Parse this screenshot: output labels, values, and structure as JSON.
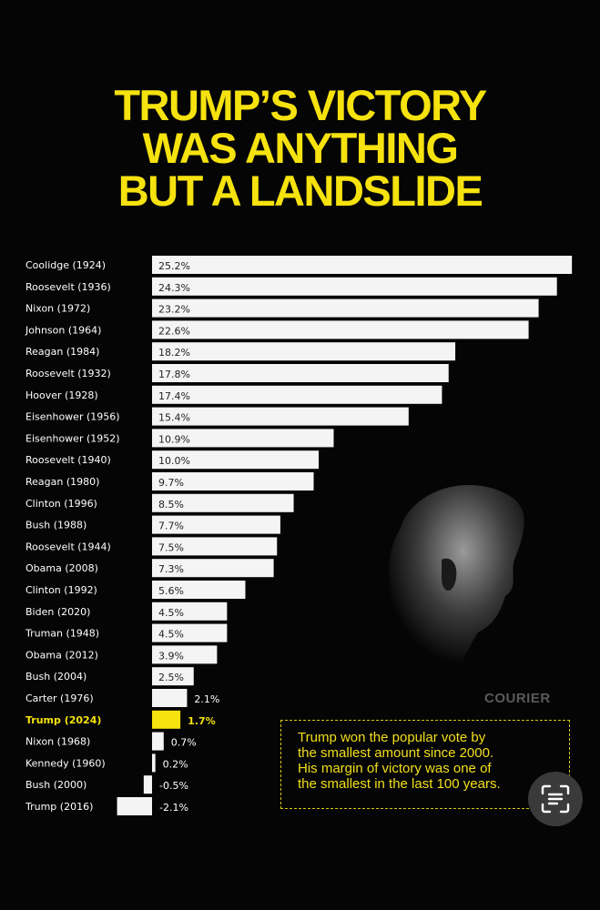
{
  "title_lines": [
    "TRUMP’S VICTORY",
    "WAS ANYTHING",
    "BUT A LANDSLIDE"
  ],
  "brand": "COURIER",
  "callout_lines": [
    "Trump won the popular vote by",
    "the smallest amount since 2000.",
    "His margin of victory was one of",
    "the smallest in the last 100 years."
  ],
  "colors": {
    "background": "#050505",
    "title": "#f5e20f",
    "bar": "#f4f4f4",
    "highlight": "#f5e20f",
    "label": "#ffffff"
  },
  "lens_icon": "lens-scan-icon",
  "chart_data": {
    "type": "bar",
    "orientation": "horizontal",
    "categories": [
      "Coolidge (1924)",
      "Roosevelt (1936)",
      "Nixon (1972)",
      "Johnson (1964)",
      "Reagan (1984)",
      "Roosevelt (1932)",
      "Hoover (1928)",
      "Eisenhower (1956)",
      "Eisenhower (1952)",
      "Roosevelt (1940)",
      "Reagan (1980)",
      "Clinton (1996)",
      "Bush (1988)",
      "Roosevelt (1944)",
      "Obama (2008)",
      "Clinton (1992)",
      "Biden (2020)",
      "Truman (1948)",
      "Obama (2012)",
      "Bush (2004)",
      "Carter (1976)",
      "Trump (2024)",
      "Nixon (1968)",
      "Kennedy (1960)",
      "Bush (2000)",
      "Trump (2016)"
    ],
    "values": [
      25.2,
      24.3,
      23.2,
      22.6,
      18.2,
      17.8,
      17.4,
      15.4,
      10.9,
      10.0,
      9.7,
      8.5,
      7.7,
      7.5,
      7.3,
      5.6,
      4.5,
      4.5,
      3.9,
      2.5,
      2.1,
      1.7,
      0.7,
      0.2,
      -0.5,
      -2.1
    ],
    "value_labels": [
      "25.2%",
      "24.3%",
      "23.2%",
      "22.6%",
      "18.2%",
      "17.8%",
      "17.4%",
      "15.4%",
      "10.9%",
      "10.0%",
      "9.7%",
      "8.5%",
      "7.7%",
      "7.5%",
      "7.3%",
      "5.6%",
      "4.5%",
      "4.5%",
      "3.9%",
      "2.5%",
      "2.1%",
      "1.7%",
      "0.7%",
      "0.2%",
      "-0.5%",
      "-2.1%"
    ],
    "highlight": "Trump (2024)",
    "xlim": [
      -2.1,
      25.2
    ],
    "grid": false,
    "legend": "none"
  }
}
